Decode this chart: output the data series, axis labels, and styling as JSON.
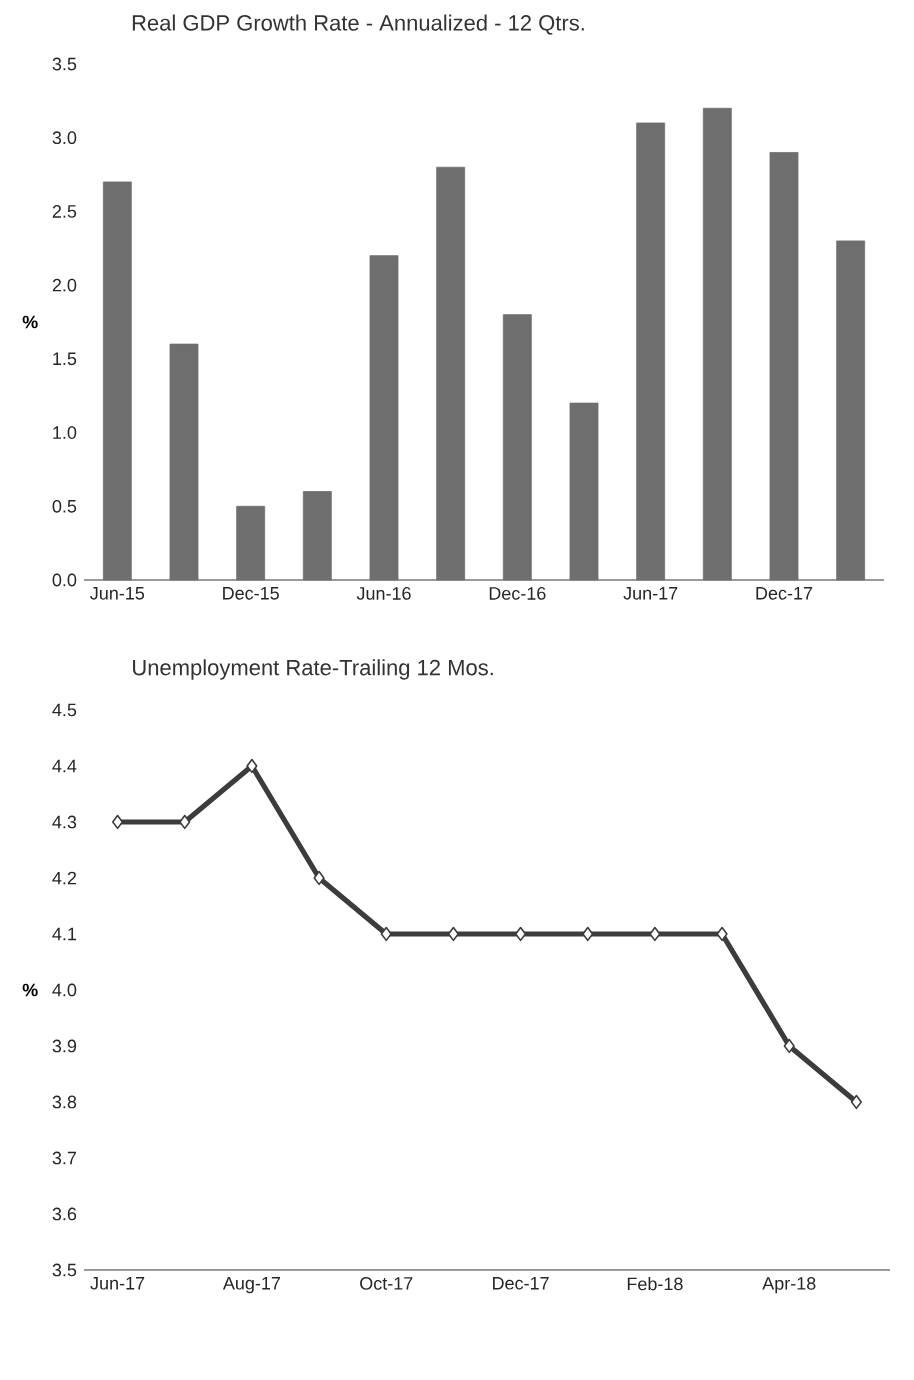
{
  "chart_data": [
    {
      "type": "bar",
      "title": "Real GDP Growth Rate - Annualized - 12 Qtrs.",
      "ylabel": "%",
      "categories": [
        "Jun-15",
        null,
        "Dec-15",
        null,
        "Jun-16",
        null,
        "Dec-16",
        null,
        "Jun-17",
        null,
        "Dec-17",
        null
      ],
      "values": [
        2.7,
        1.6,
        0.5,
        0.6,
        2.2,
        2.8,
        1.8,
        1.2,
        3.1,
        3.2,
        2.9,
        2.3
      ],
      "color": "#6e6e6e",
      "ylim": [
        0,
        3.5
      ],
      "yticks": [
        {
          "value": 0,
          "label": "0.0"
        },
        0.5,
        {
          "value": 1,
          "label": "1.0"
        },
        1.5,
        {
          "value": 2,
          "label": "2.0"
        },
        2.5,
        {
          "value": 3,
          "label": "3.0"
        },
        3.5
      ]
    },
    {
      "type": "line",
      "title": "Unemployment Rate-Trailing 12 Mos.",
      "ylabel": "%",
      "categories": [
        "Jun-17",
        null,
        "Aug-17",
        null,
        "Oct-17",
        null,
        "Dec-17",
        null,
        "Feb-18",
        null,
        "Apr-18",
        null
      ],
      "values": [
        4.3,
        4.3,
        4.4,
        4.2,
        4.1,
        4.1,
        4.1,
        4.1,
        4.1,
        4.1,
        3.9,
        3.8
      ],
      "color": "#3c3c3c",
      "marker": "diamond",
      "ylim": [
        3.5,
        4.5
      ],
      "yticks": [
        3.5,
        3.6,
        3.7,
        3.8,
        3.9,
        {
          "value": 4,
          "label": "4.0"
        },
        4.1,
        4.2,
        4.3,
        4.4,
        4.5
      ]
    }
  ]
}
